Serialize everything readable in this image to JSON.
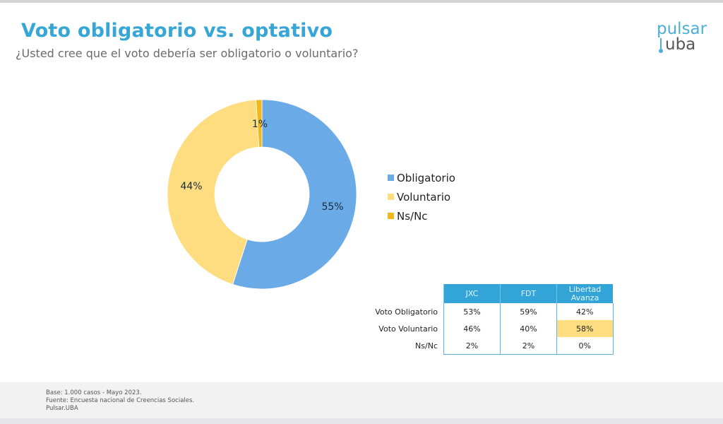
{
  "header": {
    "title": "Voto obligatorio vs. optativo",
    "subtitle": "¿Usted cree que el voto debería ser obligatorio o voluntario?",
    "logo_top": "pulsar",
    "logo_bottom": "uba"
  },
  "chart_data": {
    "type": "pie",
    "variant": "donut",
    "title": "Voto obligatorio vs. optativo",
    "slices": [
      {
        "label": "Obligatorio",
        "value": 55,
        "display": "55%",
        "color": "#6aaae6"
      },
      {
        "label": "Voluntario",
        "value": 44,
        "display": "44%",
        "color": "#fddd80"
      },
      {
        "label": "Ns/Nc",
        "value": 1,
        "display": "1%",
        "color": "#f2b81a"
      }
    ],
    "legend_position": "right"
  },
  "legend": {
    "items": [
      {
        "label": "Obligatorio",
        "color": "#6aaae6"
      },
      {
        "label": "Voluntario",
        "color": "#fddd80"
      },
      {
        "label": "Ns/Nc",
        "color": "#f2b81a"
      }
    ]
  },
  "table": {
    "columns": [
      "JXC",
      "FDT",
      "Libertad Avanza"
    ],
    "rows": [
      {
        "label": "Voto Obligatorio",
        "values": [
          "53%",
          "59%",
          "42%"
        ]
      },
      {
        "label": "Voto Voluntario",
        "values": [
          "46%",
          "40%",
          "58%"
        ]
      },
      {
        "label": "Ns/Nc",
        "values": [
          "2%",
          "2%",
          "0%"
        ]
      }
    ],
    "header_color": "#32a4d8",
    "highlight_color": "#fddd80"
  },
  "footer": {
    "base": "Base:  1.000 casos - Mayo 2023.",
    "source": "Fuente: Encuesta nacional de Creencias Sociales.",
    "org": "Pulsar.UBA"
  }
}
